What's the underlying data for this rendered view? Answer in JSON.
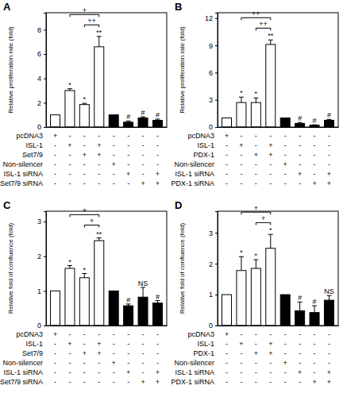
{
  "chart_data": [
    {
      "type": "bar",
      "title": "A",
      "y_label": "Relative proliferation rate (fold)",
      "categories": [
        null,
        null,
        null,
        null,
        null,
        null,
        null,
        null
      ],
      "values": [
        1.0,
        3.0,
        1.85,
        6.6,
        1.0,
        0.4,
        0.75,
        0.55
      ],
      "errors": [
        null,
        0.15,
        0.1,
        0.85,
        null,
        0.1,
        0.1,
        0.1
      ],
      "colors": [
        "#ffffff",
        "#ffffff",
        "#ffffff",
        "#ffffff",
        "#000000",
        "#000000",
        "#000000",
        "#000000"
      ],
      "ylim": [
        0,
        9.4
      ],
      "yticks": [
        0,
        2,
        4,
        6,
        8
      ],
      "significance": [
        null,
        "*",
        "*",
        "**",
        null,
        "#",
        "#",
        "#"
      ],
      "comparisons": [
        {
          "from": 1,
          "to": 3,
          "y": 9.25,
          "label": "+"
        },
        {
          "from": 2,
          "to": 3,
          "y": 8.4,
          "label": "++"
        }
      ],
      "conditions": [
        {
          "label": "pcDNA3",
          "marks": [
            "+",
            "-",
            "-",
            "-",
            "-",
            "-",
            "-",
            "-"
          ]
        },
        {
          "label": "ISL-1",
          "marks": [
            "-",
            "+",
            "-",
            "+",
            "-",
            "-",
            "-",
            "-"
          ]
        },
        {
          "label": "Set7/9",
          "marks": [
            "-",
            "-",
            "+",
            "+",
            "-",
            "-",
            "-",
            "-"
          ]
        },
        {
          "label": "Non-silencer",
          "marks": [
            "-",
            "-",
            "-",
            "-",
            "+",
            "-",
            "-",
            "-"
          ]
        },
        {
          "label": "ISL-1 siRNA",
          "marks": [
            "-",
            "-",
            "-",
            "-",
            "-",
            "+",
            "-",
            "+"
          ]
        },
        {
          "label": "Set7/9 siRNA",
          "marks": [
            "-",
            "-",
            "-",
            "-",
            "-",
            "-",
            "+",
            "+"
          ]
        }
      ]
    },
    {
      "type": "bar",
      "title": "B",
      "y_label": "Relative proliferation rate (fold)",
      "categories": [
        null,
        null,
        null,
        null,
        null,
        null,
        null,
        null
      ],
      "values": [
        1.0,
        2.7,
        2.7,
        9.1,
        1.0,
        0.4,
        0.2,
        0.75
      ],
      "errors": [
        null,
        0.6,
        0.5,
        0.5,
        null,
        0.1,
        0.05,
        0.1
      ],
      "colors": [
        "#ffffff",
        "#ffffff",
        "#ffffff",
        "#ffffff",
        "#000000",
        "#000000",
        "#000000",
        "#000000"
      ],
      "ylim": [
        0,
        12.6
      ],
      "yticks": [
        0,
        3,
        6,
        9,
        12
      ],
      "significance": [
        null,
        "*",
        "*",
        "**",
        null,
        "#",
        "#",
        "#"
      ],
      "comparisons": [
        {
          "from": 1,
          "to": 3,
          "y": 12.05,
          "label": "++"
        },
        {
          "from": 2,
          "to": 3,
          "y": 10.9,
          "label": "++"
        }
      ],
      "conditions": [
        {
          "label": "pcDNA3",
          "marks": [
            "+",
            "-",
            "-",
            "-",
            "-",
            "-",
            "-",
            "-"
          ]
        },
        {
          "label": "ISL-1",
          "marks": [
            "-",
            "+",
            "-",
            "+",
            "-",
            "-",
            "-",
            "-"
          ]
        },
        {
          "label": "PDX-1",
          "marks": [
            "-",
            "-",
            "+",
            "+",
            "-",
            "-",
            "-",
            "-"
          ]
        },
        {
          "label": "Non-silencer",
          "marks": [
            "-",
            "-",
            "-",
            "-",
            "+",
            "-",
            "-",
            "-"
          ]
        },
        {
          "label": "ISL-1 siRNA",
          "marks": [
            "-",
            "-",
            "-",
            "-",
            "-",
            "+",
            "-",
            "+"
          ]
        },
        {
          "label": "PDX-1 siRNA",
          "marks": [
            "-",
            "-",
            "-",
            "-",
            "-",
            "-",
            "+",
            "+"
          ]
        }
      ]
    },
    {
      "type": "bar",
      "title": "C",
      "y_label": "Relative fold of confluence (fold)",
      "categories": [
        null,
        null,
        null,
        null,
        null,
        null,
        null,
        null
      ],
      "values": [
        1.0,
        1.65,
        1.38,
        2.45,
        1.0,
        0.57,
        0.82,
        0.65
      ],
      "errors": [
        null,
        0.08,
        0.12,
        0.08,
        null,
        0.05,
        0.28,
        0.07
      ],
      "colors": [
        "#ffffff",
        "#ffffff",
        "#ffffff",
        "#ffffff",
        "#000000",
        "#000000",
        "#000000",
        "#000000"
      ],
      "ylim": [
        0,
        3.3
      ],
      "yticks": [
        0,
        1,
        2,
        3
      ],
      "significance": [
        null,
        "*",
        "*",
        "**",
        null,
        "#",
        "NS",
        "#"
      ],
      "comparisons": [
        {
          "from": 1,
          "to": 3,
          "y": 3.2,
          "label": "+"
        },
        {
          "from": 2,
          "to": 3,
          "y": 2.9,
          "label": "+"
        }
      ],
      "conditions": [
        {
          "label": "pcDNA3",
          "marks": [
            "+",
            "-",
            "-",
            "-",
            "-",
            "-",
            "-",
            "-"
          ]
        },
        {
          "label": "ISL-1",
          "marks": [
            "-",
            "+",
            "-",
            "+",
            "-",
            "-",
            "-",
            "-"
          ]
        },
        {
          "label": "Set7/9",
          "marks": [
            "-",
            "-",
            "+",
            "+",
            "-",
            "-",
            "-",
            "-"
          ]
        },
        {
          "label": "Non-silencer",
          "marks": [
            "-",
            "-",
            "-",
            "-",
            "+",
            "-",
            "-",
            "-"
          ]
        },
        {
          "label": "ISL-1 siRNA",
          "marks": [
            "-",
            "-",
            "-",
            "-",
            "-",
            "+",
            "-",
            "+"
          ]
        },
        {
          "label": "Set7/9 siRNA",
          "marks": [
            "-",
            "-",
            "-",
            "-",
            "-",
            "-",
            "+",
            "+"
          ]
        }
      ]
    },
    {
      "type": "bar",
      "title": "D",
      "y_label": "Relative fold of confluence (fold)",
      "categories": [
        null,
        null,
        null,
        null,
        null,
        null,
        null,
        null
      ],
      "values": [
        1.0,
        1.78,
        1.85,
        2.5,
        1.0,
        0.48,
        0.42,
        0.82
      ],
      "errors": [
        null,
        0.45,
        0.28,
        0.45,
        null,
        0.28,
        0.22,
        0.15
      ],
      "colors": [
        "#ffffff",
        "#ffffff",
        "#ffffff",
        "#ffffff",
        "#000000",
        "#000000",
        "#000000",
        "#000000"
      ],
      "ylim": [
        0,
        3.7
      ],
      "yticks": [
        0,
        1,
        2,
        3
      ],
      "significance": [
        null,
        "*",
        "*",
        "*",
        null,
        "#",
        "#",
        "NS"
      ],
      "comparisons": [
        {
          "from": 1,
          "to": 3,
          "y": 3.67,
          "label": "+"
        },
        {
          "from": 2,
          "to": 3,
          "y": 3.33,
          "label": "+"
        }
      ],
      "conditions": [
        {
          "label": "pcDNA3",
          "marks": [
            "+",
            "-",
            "-",
            "-",
            "-",
            "-",
            "-",
            "-"
          ]
        },
        {
          "label": "ISL-1",
          "marks": [
            "-",
            "+",
            "-",
            "+",
            "-",
            "-",
            "-",
            "-"
          ]
        },
        {
          "label": "PDX-1",
          "marks": [
            "-",
            "-",
            "+",
            "+",
            "-",
            "-",
            "-",
            "-"
          ]
        },
        {
          "label": "Non-silencer",
          "marks": [
            "-",
            "-",
            "-",
            "-",
            "+",
            "-",
            "-",
            "-"
          ]
        },
        {
          "label": "ISL-1 siRNA",
          "marks": [
            "-",
            "-",
            "-",
            "-",
            "-",
            "+",
            "-",
            "+"
          ]
        },
        {
          "label": "PDX-1 siRNA",
          "marks": [
            "-",
            "-",
            "-",
            "-",
            "-",
            "-",
            "+",
            "+"
          ]
        }
      ]
    }
  ]
}
